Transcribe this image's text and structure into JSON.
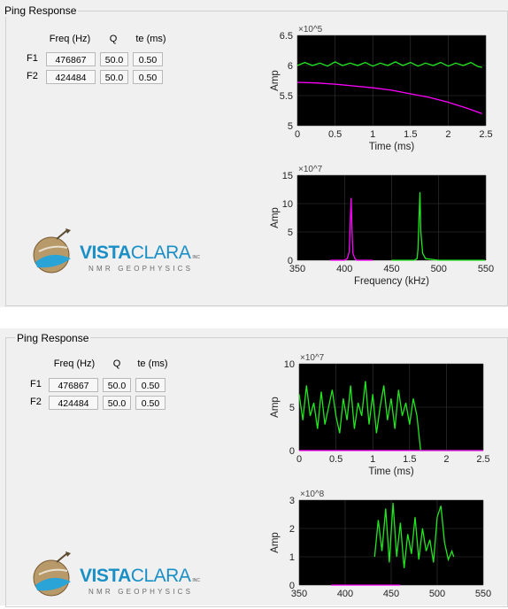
{
  "panels": [
    {
      "title": "Ping Response",
      "table": {
        "headers": [
          "Freq (Hz)",
          "Q",
          "te (ms)"
        ],
        "rows": [
          {
            "label": "F1",
            "freq": "476867",
            "q": "50.0",
            "te": "0.50"
          },
          {
            "label": "F2",
            "freq": "424484",
            "q": "50.0",
            "te": "0.50"
          }
        ]
      },
      "logo": {
        "brand_a": "VISTA",
        "brand_b": "CLARA",
        "inc": "INC",
        "sub": "NMR GEOPHYSICS"
      }
    },
    {
      "title": "Ping Response",
      "table": {
        "headers": [
          "Freq (Hz)",
          "Q",
          "te (ms)"
        ],
        "rows": [
          {
            "label": "F1",
            "freq": "476867",
            "q": "50.0",
            "te": "0.50"
          },
          {
            "label": "F2",
            "freq": "424484",
            "q": "50.0",
            "te": "0.50"
          }
        ]
      },
      "logo": {
        "brand_a": "VISTA",
        "brand_b": "CLARA",
        "inc": "INC",
        "sub": "NMR GEOPHYSICS"
      }
    }
  ],
  "colors": {
    "green": "#22e61f",
    "magenta": "#ff00ff",
    "plot_bg": "#000000",
    "grid": "#3a3a3a",
    "logo_blue": "#1a8fc6",
    "logo_gray": "#7a7a7a"
  },
  "chart_data": [
    {
      "type": "line",
      "xlabel": "Time (ms)",
      "ylabel": "Amp",
      "exponent": "×10^5",
      "xlim": [
        0,
        2.5
      ],
      "ylim": [
        5,
        6.5
      ],
      "xticks": [
        0,
        0.5,
        1,
        1.5,
        2,
        2.5
      ],
      "xticklabels": [
        "0",
        "0.5",
        "1",
        "1.5",
        "2",
        "2.5"
      ],
      "yticks": [
        5,
        5.5,
        6,
        6.5
      ],
      "yticklabels": [
        "5",
        "5.5",
        "6",
        "6.5"
      ],
      "grid": true,
      "series": [
        {
          "color": "green",
          "x": [
            0.0,
            0.1,
            0.2,
            0.3,
            0.4,
            0.5,
            0.6,
            0.7,
            0.8,
            0.9,
            1.0,
            1.1,
            1.2,
            1.3,
            1.4,
            1.5,
            1.6,
            1.7,
            1.8,
            1.9,
            2.0,
            2.1,
            2.2,
            2.3,
            2.4,
            2.45
          ],
          "y": [
            6.0,
            6.05,
            6.0,
            6.04,
            5.99,
            6.06,
            6.0,
            6.04,
            6.0,
            6.05,
            5.99,
            6.04,
            6.0,
            6.06,
            6.0,
            6.05,
            5.99,
            6.04,
            6.0,
            6.05,
            5.99,
            6.04,
            6.0,
            6.05,
            5.98,
            5.97
          ]
        },
        {
          "color": "magenta",
          "x": [
            0.0,
            0.25,
            0.5,
            0.75,
            1.0,
            1.25,
            1.5,
            1.75,
            2.0,
            2.25,
            2.45
          ],
          "y": [
            5.72,
            5.71,
            5.69,
            5.66,
            5.63,
            5.59,
            5.53,
            5.47,
            5.39,
            5.29,
            5.2
          ]
        }
      ]
    },
    {
      "type": "line",
      "xlabel": "Frequency (kHz)",
      "ylabel": "Amp",
      "exponent": "×10^7",
      "xlim": [
        350,
        550
      ],
      "ylim": [
        0,
        15
      ],
      "xticks": [
        350,
        400,
        450,
        500,
        550
      ],
      "xticklabels": [
        "350",
        "400",
        "450",
        "500",
        "550"
      ],
      "yticks": [
        0,
        5,
        10,
        15
      ],
      "yticklabels": [
        "0",
        "5",
        "10",
        "15"
      ],
      "grid": true,
      "series": [
        {
          "color": "magenta",
          "x": [
            385,
            400,
            403,
            405,
            406,
            407,
            408,
            409,
            411,
            413,
            430
          ],
          "y": [
            0,
            0,
            0.3,
            1.5,
            6,
            11,
            5,
            1.2,
            0.3,
            0,
            0
          ]
        },
        {
          "color": "green",
          "x": [
            450,
            474,
            477,
            478,
            479,
            480,
            481,
            483,
            486,
            500,
            549
          ],
          "y": [
            0,
            0,
            0.3,
            2,
            7,
            12,
            5,
            1.2,
            0.3,
            0,
            0
          ]
        }
      ]
    },
    {
      "type": "line",
      "xlabel": "Time (ms)",
      "ylabel": "Amp",
      "exponent": "×10^7",
      "xlim": [
        0,
        2.5
      ],
      "ylim": [
        0,
        10
      ],
      "xticks": [
        0,
        0.5,
        1,
        1.5,
        2,
        2.5
      ],
      "xticklabels": [
        "0",
        "0.5",
        "1",
        "1.5",
        "2",
        "2.5"
      ],
      "yticks": [
        0,
        5,
        10
      ],
      "yticklabels": [
        "0",
        "5",
        "10"
      ],
      "grid": true,
      "series": [
        {
          "color": "green",
          "x": [
            0.0,
            0.05,
            0.1,
            0.15,
            0.2,
            0.25,
            0.3,
            0.35,
            0.4,
            0.45,
            0.5,
            0.55,
            0.6,
            0.65,
            0.7,
            0.75,
            0.8,
            0.85,
            0.9,
            0.95,
            1.0,
            1.05,
            1.1,
            1.15,
            1.2,
            1.25,
            1.3,
            1.35,
            1.4,
            1.45,
            1.5,
            1.55,
            1.6,
            1.65,
            2.5
          ],
          "y": [
            6.5,
            3.5,
            7.5,
            4,
            5.5,
            2.5,
            6.8,
            3,
            5,
            7,
            4,
            2,
            6,
            3.5,
            7.5,
            2.5,
            5.5,
            4,
            8,
            3,
            6.5,
            2,
            5,
            7.5,
            3.5,
            6,
            2.5,
            7,
            4,
            5.5,
            3,
            6,
            4,
            0,
            0
          ]
        },
        {
          "color": "magenta",
          "x": [
            0,
            2.5
          ],
          "y": [
            0,
            0
          ]
        }
      ]
    },
    {
      "type": "line",
      "xlabel": "",
      "ylabel": "Amp",
      "exponent": "×10^8",
      "xlim": [
        350,
        550
      ],
      "ylim": [
        0,
        3
      ],
      "xticks": [
        350,
        400,
        450,
        500,
        550
      ],
      "xticklabels": [
        "350",
        "400",
        "450",
        "500",
        "550"
      ],
      "yticks": [
        0,
        1,
        2,
        3
      ],
      "yticklabels": [
        "0",
        "1",
        "2",
        "3"
      ],
      "grid": true,
      "series": [
        {
          "color": "magenta",
          "x": [
            385,
            460
          ],
          "y": [
            0,
            0
          ]
        },
        {
          "color": "green",
          "x": [
            432,
            436,
            440,
            444,
            448,
            452,
            456,
            460,
            464,
            468,
            472,
            476,
            480,
            484,
            488,
            492,
            496,
            500,
            504,
            508,
            512,
            516,
            518
          ],
          "y": [
            1.0,
            2.3,
            1.2,
            2.7,
            0.8,
            2.9,
            1.0,
            2.2,
            0.6,
            1.8,
            1.1,
            2.4,
            0.9,
            2.0,
            1.2,
            1.6,
            0.8,
            2.4,
            2.8,
            1.5,
            0.9,
            1.2,
            1.0
          ]
        }
      ]
    }
  ]
}
